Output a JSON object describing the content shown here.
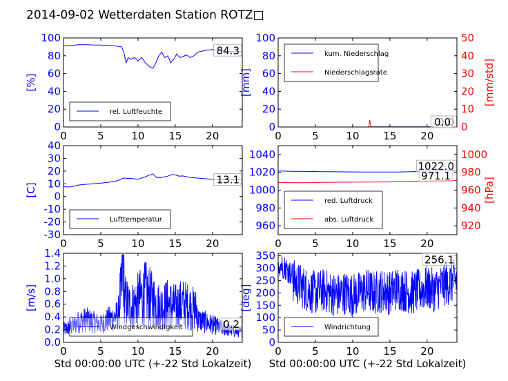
{
  "title": "2014-09-02 Wetterdaten Station ROTZ□",
  "colors": {
    "blue": "#0000ff",
    "red": "#ff0000",
    "black": "#000000",
    "light_blue": "#8080ff"
  },
  "chart_data": [
    {
      "id": "humidity",
      "type": "line",
      "xlim": [
        0,
        24
      ],
      "xticks": [
        0,
        5,
        10,
        15,
        20
      ],
      "ylim": [
        0,
        100
      ],
      "yticks": [
        0,
        20,
        40,
        60,
        80,
        100
      ],
      "ylabel": "[%]",
      "xlabel": "",
      "legend": "lower-center",
      "last_value": "84.3",
      "series": [
        {
          "name": "rel. Luftfeuchte",
          "color": "#0000ff",
          "points": [
            [
              0,
              91
            ],
            [
              1,
              91.5
            ],
            [
              2,
              92.5
            ],
            [
              3,
              92.5
            ],
            [
              4,
              92
            ],
            [
              5,
              92
            ],
            [
              6,
              91.5
            ],
            [
              7,
              91
            ],
            [
              7.8,
              90
            ],
            [
              8.1,
              84
            ],
            [
              8.4,
              72
            ],
            [
              8.7,
              78
            ],
            [
              9,
              76
            ],
            [
              9.5,
              78
            ],
            [
              10,
              74
            ],
            [
              10.5,
              78
            ],
            [
              11,
              72
            ],
            [
              11.5,
              68
            ],
            [
              12,
              66
            ],
            [
              12.4,
              72
            ],
            [
              12.8,
              80
            ],
            [
              13.2,
              84
            ],
            [
              13.6,
              78
            ],
            [
              14,
              80
            ],
            [
              14.4,
              72
            ],
            [
              14.8,
              76
            ],
            [
              15.2,
              82
            ],
            [
              15.6,
              78
            ],
            [
              16,
              79
            ],
            [
              16.5,
              81
            ],
            [
              17,
              78
            ],
            [
              17.5,
              80
            ],
            [
              18,
              84
            ],
            [
              18.5,
              85
            ],
            [
              19,
              86
            ],
            [
              20,
              87
            ],
            [
              21,
              86
            ],
            [
              22,
              85
            ],
            [
              23,
              84.5
            ],
            [
              24,
              84.3
            ]
          ]
        }
      ]
    },
    {
      "id": "precipitation",
      "type": "line",
      "xlim": [
        0,
        24
      ],
      "xticks": [
        0,
        5,
        10,
        15,
        20
      ],
      "ylim": [
        0,
        100
      ],
      "yticks": [
        0,
        20,
        40,
        60,
        80,
        100
      ],
      "ylabel": "[mm]",
      "y2lim": [
        0,
        50
      ],
      "y2ticks": [
        0,
        10,
        20,
        30,
        40,
        50
      ],
      "y2label": "[mm/std]",
      "xlabel": "",
      "legend": "upper-left",
      "last_value": "0.0",
      "last_value2": "0.0",
      "series": [
        {
          "name": "kum. Niederschlag",
          "color": "#0000ff",
          "axis": "left",
          "points": [
            [
              0,
              0
            ],
            [
              12.2,
              0
            ],
            [
              12.4,
              0.2
            ],
            [
              24,
              0.2
            ]
          ]
        },
        {
          "name": "Niederschlagsrate",
          "color": "#ff0000",
          "axis": "right",
          "points": [
            [
              0,
              0
            ],
            [
              12.1,
              0
            ],
            [
              12.2,
              1
            ],
            [
              12.3,
              4
            ],
            [
              12.4,
              1
            ],
            [
              12.5,
              0
            ],
            [
              24,
              0
            ]
          ]
        }
      ]
    },
    {
      "id": "temperature",
      "type": "line",
      "xlim": [
        0,
        24
      ],
      "xticks": [
        0,
        5,
        10,
        15,
        20
      ],
      "ylim": [
        -30,
        40
      ],
      "yticks": [
        -30,
        -20,
        -10,
        0,
        10,
        20,
        30,
        40
      ],
      "ylabel": "[C]",
      "xlabel": "",
      "legend": "lower-center",
      "last_value": "13.1",
      "series": [
        {
          "name": "Lufttemperatur",
          "color": "#0000ff",
          "points": [
            [
              0,
              8
            ],
            [
              0.5,
              7.5
            ],
            [
              1,
              7.6
            ],
            [
              2,
              9
            ],
            [
              3,
              9.6
            ],
            [
              4,
              10
            ],
            [
              5,
              10.5
            ],
            [
              6,
              11.2
            ],
            [
              7,
              12
            ],
            [
              7.5,
              13
            ],
            [
              8,
              14.5
            ],
            [
              9,
              14.2
            ],
            [
              10,
              13.5
            ],
            [
              11,
              15.5
            ],
            [
              11.5,
              16.8
            ],
            [
              12,
              17.8
            ],
            [
              12.5,
              15
            ],
            [
              13,
              14.8
            ],
            [
              14,
              16
            ],
            [
              14.5,
              17.2
            ],
            [
              15,
              17
            ],
            [
              15.5,
              16
            ],
            [
              16,
              16.2
            ],
            [
              17,
              15
            ],
            [
              18,
              14.5
            ],
            [
              19,
              14
            ],
            [
              20,
              13.5
            ],
            [
              21,
              13.3
            ],
            [
              22,
              13.2
            ],
            [
              23,
              13.1
            ],
            [
              24,
              13.1
            ]
          ]
        }
      ]
    },
    {
      "id": "pressure",
      "type": "line",
      "xlim": [
        0,
        24
      ],
      "xticks": [
        0,
        5,
        10,
        15,
        20
      ],
      "ylim": [
        950,
        1050
      ],
      "yticks": [
        960,
        980,
        1000,
        1020,
        1040
      ],
      "ylabel": "",
      "y2lim": [
        910,
        1010
      ],
      "y2ticks": [
        920,
        940,
        960,
        980,
        1000
      ],
      "y2label": "[hPa]",
      "xlabel": "",
      "legend": "lower-left",
      "last_value": "1022.0",
      "last_value2": "971.1",
      "series": [
        {
          "name": "red. Luftdruck",
          "color": "#0000ff",
          "axis": "left",
          "points": [
            [
              0,
              1021.5
            ],
            [
              2,
              1021.2
            ],
            [
              4,
              1021
            ],
            [
              6,
              1020.8
            ],
            [
              8,
              1020.6
            ],
            [
              10,
              1020.5
            ],
            [
              12,
              1020.4
            ],
            [
              14,
              1020.3
            ],
            [
              16,
              1020.4
            ],
            [
              18,
              1020.8
            ],
            [
              20,
              1021.3
            ],
            [
              22,
              1021.8
            ],
            [
              24,
              1022.0
            ]
          ]
        },
        {
          "name": "abs. Luftdruck",
          "color": "#ff0000",
          "axis": "right",
          "points": [
            [
              0,
              968.5
            ],
            [
              2,
              968.3
            ],
            [
              4,
              968.4
            ],
            [
              6,
              968.7
            ],
            [
              8,
              968.9
            ],
            [
              10,
              969.0
            ],
            [
              12,
              969.1
            ],
            [
              14,
              969.2
            ],
            [
              16,
              969.3
            ],
            [
              18,
              969.6
            ],
            [
              20,
              970.2
            ],
            [
              22,
              970.7
            ],
            [
              24,
              971.1
            ]
          ]
        }
      ]
    },
    {
      "id": "windspeed",
      "type": "line",
      "xlim": [
        0,
        24
      ],
      "xticks": [
        0,
        5,
        10,
        15,
        20
      ],
      "ylim": [
        0,
        1.4
      ],
      "yticks": [
        0.0,
        0.2,
        0.4,
        0.6,
        0.8,
        1.0,
        1.2,
        1.4
      ],
      "ylabel": "[m/s]",
      "xlabel": "Std 00:00:00 UTC (+-22 Std Lokalzeit)",
      "legend": "lower-center",
      "last_value": "0.2",
      "series": [
        {
          "name": "Windgeschwindigkeit",
          "color": "#0000ff",
          "noisy": true,
          "points": [
            [
              0,
              0.25
            ],
            [
              1,
              0.3
            ],
            [
              2,
              0.4
            ],
            [
              3,
              0.45
            ],
            [
              4,
              0.4
            ],
            [
              5,
              0.35
            ],
            [
              6,
              0.45
            ],
            [
              7,
              0.5
            ],
            [
              7.8,
              0.7
            ],
            [
              8,
              1.38
            ],
            [
              8.2,
              0.6
            ],
            [
              9,
              0.5
            ],
            [
              10,
              0.6
            ],
            [
              11,
              0.7
            ],
            [
              12,
              0.6
            ],
            [
              13,
              0.5
            ],
            [
              14,
              0.55
            ],
            [
              15,
              0.5
            ],
            [
              16,
              0.55
            ],
            [
              17,
              0.5
            ],
            [
              18,
              0.45
            ],
            [
              19,
              0.4
            ],
            [
              20,
              0.35
            ],
            [
              21,
              0.3
            ],
            [
              22,
              0.25
            ],
            [
              23,
              0.22
            ],
            [
              24,
              0.2
            ]
          ]
        }
      ]
    },
    {
      "id": "winddirection",
      "type": "line",
      "xlim": [
        0,
        24
      ],
      "xticks": [
        0,
        5,
        10,
        15,
        20
      ],
      "ylim": [
        0,
        360
      ],
      "yticks": [
        0,
        50,
        100,
        150,
        200,
        250,
        300,
        350
      ],
      "ylabel": "[deg]",
      "xlabel": "Std 00:00:00 UTC (+-22 Std Lokalzeit)",
      "legend": "lower-left",
      "last_value": "256.1",
      "series": [
        {
          "name": "Windrichtung",
          "color": "#0000ff",
          "noisy": true,
          "points": [
            [
              0,
              300
            ],
            [
              1,
              280
            ],
            [
              2,
              250
            ],
            [
              3,
              230
            ],
            [
              4,
              210
            ],
            [
              5,
              200
            ],
            [
              6,
              210
            ],
            [
              7,
              200
            ],
            [
              8,
              190
            ],
            [
              9,
              200
            ],
            [
              10,
              190
            ],
            [
              11,
              200
            ],
            [
              12,
              210
            ],
            [
              13,
              200
            ],
            [
              14,
              210
            ],
            [
              15,
              200
            ],
            [
              16,
              220
            ],
            [
              17,
              210
            ],
            [
              18,
              200
            ],
            [
              19,
              210
            ],
            [
              20,
              220
            ],
            [
              21,
              210
            ],
            [
              22,
              230
            ],
            [
              23,
              240
            ],
            [
              24,
              256.1
            ]
          ]
        }
      ]
    }
  ]
}
